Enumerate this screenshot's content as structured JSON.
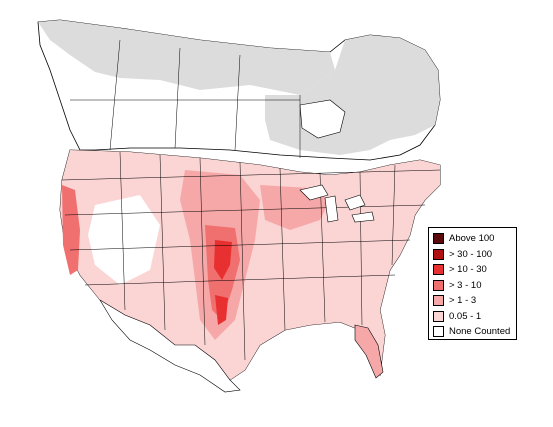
{
  "map": {
    "colors": {
      "no_data_region": "#dcdcdc",
      "land": "#ffffff",
      "border": "#000000"
    }
  },
  "legend": {
    "items": [
      {
        "label": "Above 100",
        "color": "#5a0a0a"
      },
      {
        "label": "> 30 - 100",
        "color": "#b01010"
      },
      {
        "label": "> 10 - 30",
        "color": "#e83030"
      },
      {
        "label": "> 3 - 10",
        "color": "#f07070"
      },
      {
        "label": "> 1 - 3",
        "color": "#f6a8a8"
      },
      {
        "label": "0.05 - 1",
        "color": "#fbd4d4"
      },
      {
        "label": "None Counted",
        "color": "#ffffff"
      }
    ]
  }
}
